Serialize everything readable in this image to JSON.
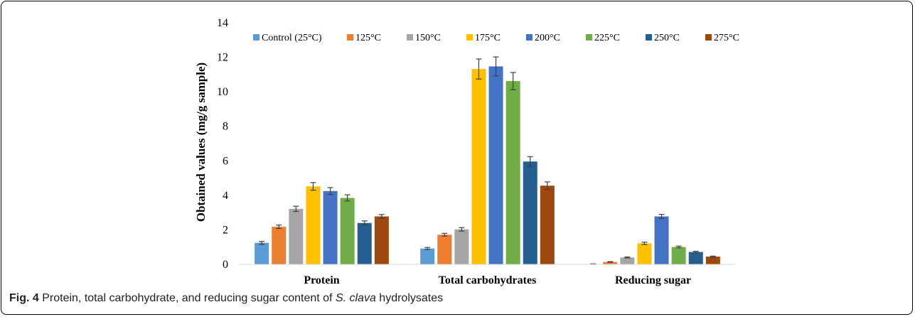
{
  "chart_data": {
    "type": "bar",
    "ylabel": "Obtained values (mg/g sample)",
    "ylim": [
      0,
      14
    ],
    "yticks": [
      0,
      2,
      4,
      6,
      8,
      10,
      12,
      14
    ],
    "grid": false,
    "legend_placement": "top",
    "categories": [
      "Protein",
      "Total carbohydrates",
      "Reducing sugar"
    ],
    "series": [
      {
        "name": "Control (25°C)",
        "color": "#5b9bd5",
        "values": [
          1.25,
          0.92,
          0.02
        ],
        "errors": [
          0.08,
          0.06,
          0.01
        ]
      },
      {
        "name": "125°C",
        "color": "#ed7d31",
        "values": [
          2.18,
          1.72,
          0.14
        ],
        "errors": [
          0.1,
          0.08,
          0.02
        ]
      },
      {
        "name": "150°C",
        "color": "#a5a5a5",
        "values": [
          3.22,
          2.03,
          0.4
        ],
        "errors": [
          0.15,
          0.1,
          0.03
        ]
      },
      {
        "name": "175°C",
        "color": "#ffc000",
        "values": [
          4.52,
          11.32,
          1.22
        ],
        "errors": [
          0.22,
          0.58,
          0.07
        ]
      },
      {
        "name": "200°C",
        "color": "#4472c4",
        "values": [
          4.25,
          11.47,
          2.78
        ],
        "errors": [
          0.2,
          0.55,
          0.12
        ]
      },
      {
        "name": "225°C",
        "color": "#70ad47",
        "values": [
          3.85,
          10.62,
          1.01
        ],
        "errors": [
          0.18,
          0.5,
          0.05
        ]
      },
      {
        "name": "250°C",
        "color": "#255e91",
        "values": [
          2.4,
          5.96,
          0.72
        ],
        "errors": [
          0.12,
          0.28,
          0.04
        ]
      },
      {
        "name": "275°C",
        "color": "#9e480e",
        "values": [
          2.78,
          4.56,
          0.45
        ],
        "errors": [
          0.11,
          0.22,
          0.03
        ]
      }
    ]
  },
  "caption": {
    "label": "Fig. 4",
    "text_before": " Protein, total carbohydrate, and reducing sugar content of ",
    "species": "S. clava",
    "text_after": " hydrolysates"
  }
}
